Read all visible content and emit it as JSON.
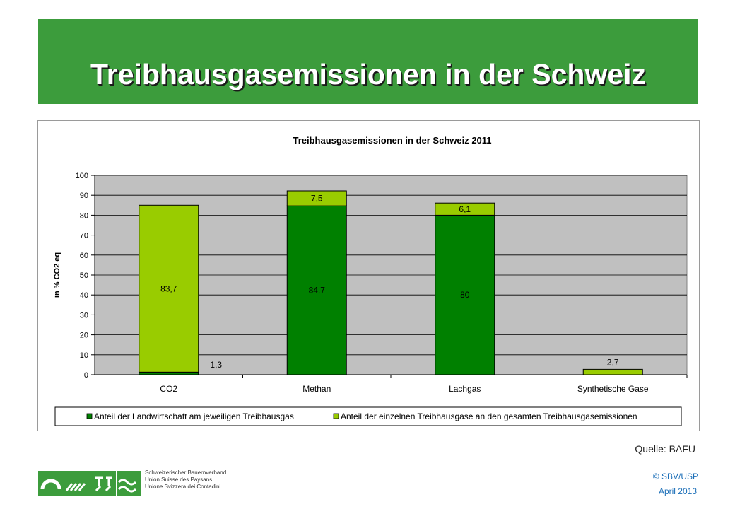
{
  "slide": {
    "title": "Treibhausgasemissionen in der Schweiz",
    "source": "Quelle: BAFU",
    "copyright": "© SBV/USP",
    "date": "April 2013",
    "org_names": [
      "Schweizerischer Bauernverband",
      "Union Suisse des Paysans",
      "Unione Svizzera dei Contadini"
    ]
  },
  "colors": {
    "banner": "#3c9c3c",
    "agri": "#008000",
    "total": "#99cc00",
    "plot_bg": "#c0c0c0"
  },
  "chart_data": {
    "type": "bar",
    "stacked": true,
    "title": "Treibhausgasemissionen in der Schweiz 2011",
    "xlabel": "",
    "ylabel": "in % CO2 eq",
    "ylim": [
      0,
      100
    ],
    "yticks": [
      0,
      10,
      20,
      30,
      40,
      50,
      60,
      70,
      80,
      90,
      100
    ],
    "categories": [
      "CO2",
      "Methan",
      "Lachgas",
      "Synthetische Gase"
    ],
    "grid": true,
    "legend_position": "bottom",
    "series": [
      {
        "name": "Anteil der Landwirtschaft am jeweiligen Treibhausgas",
        "values": [
          1.3,
          84.7,
          80,
          0
        ],
        "labels": [
          "1,3",
          "84,7",
          "80",
          ""
        ]
      },
      {
        "name": "Anteil der einzelnen Treibhausgase an den gesamten Treibhausgasemissionen",
        "values": [
          83.7,
          7.5,
          6.1,
          2.7
        ],
        "labels": [
          "83,7",
          "7,5",
          "6,1",
          "2,7"
        ]
      }
    ]
  }
}
